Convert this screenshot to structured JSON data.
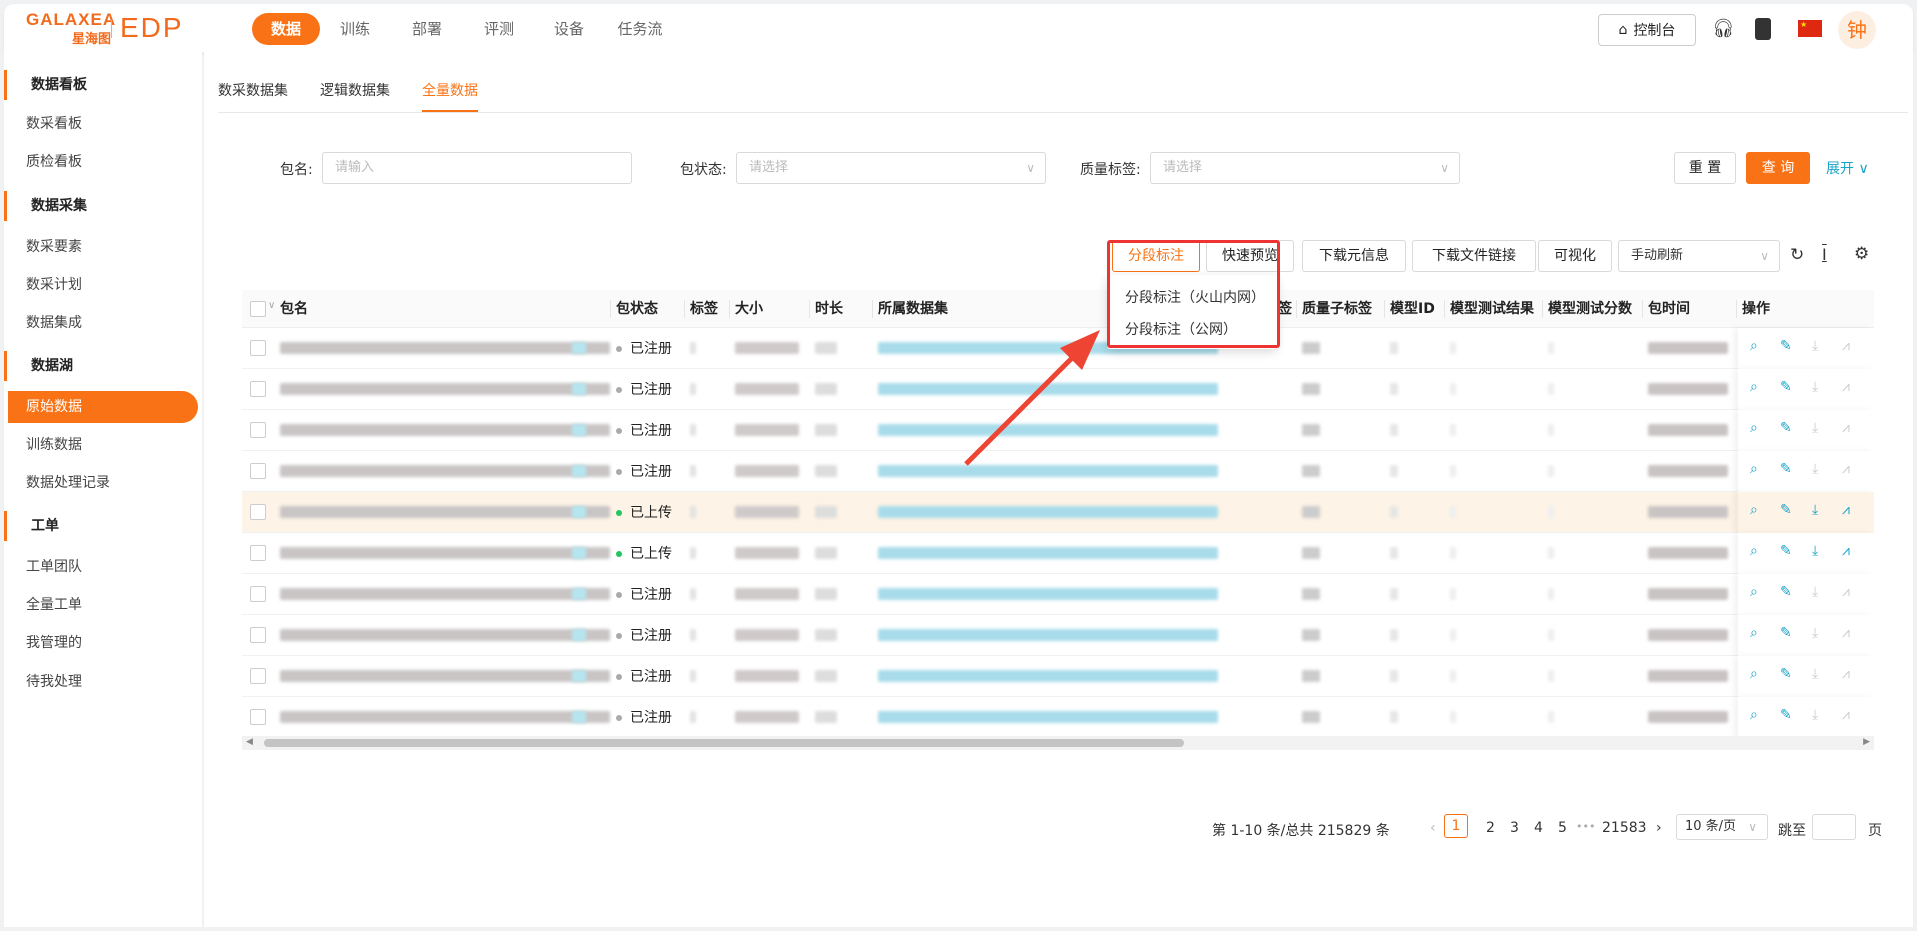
{
  "header": {
    "logo_en": "GALAXEA",
    "logo_cn": "星海图",
    "product": "EDP",
    "nav": [
      {
        "label": "数据",
        "active": true
      },
      {
        "label": "训练"
      },
      {
        "label": "部署"
      },
      {
        "label": "评测"
      },
      {
        "label": "设备"
      },
      {
        "label": "任务流"
      }
    ],
    "console_label": "控制台",
    "avatar_text": "钟",
    "icons": [
      "home-icon",
      "headset-icon",
      "book-icon",
      "china-flag-icon"
    ]
  },
  "sidebar": [
    {
      "type": "group",
      "label": "数据看板"
    },
    {
      "type": "item",
      "label": "数采看板"
    },
    {
      "type": "item",
      "label": "质检看板"
    },
    {
      "type": "group",
      "label": "数据采集"
    },
    {
      "type": "item",
      "label": "数采要素"
    },
    {
      "type": "item",
      "label": "数采计划"
    },
    {
      "type": "item",
      "label": "数据集成"
    },
    {
      "type": "group",
      "label": "数据湖"
    },
    {
      "type": "item",
      "label": "原始数据",
      "active": true
    },
    {
      "type": "item",
      "label": "训练数据"
    },
    {
      "type": "item",
      "label": "数据处理记录"
    },
    {
      "type": "group",
      "label": "工单"
    },
    {
      "type": "item",
      "label": "工单团队"
    },
    {
      "type": "item",
      "label": "全量工单"
    },
    {
      "type": "item",
      "label": "我管理的"
    },
    {
      "type": "item",
      "label": "待我处理"
    }
  ],
  "tabs": [
    "数采数据集",
    "逻辑数据集",
    "全量数据"
  ],
  "filters": {
    "name_label": "包名:",
    "name_placeholder": "请输入",
    "status_label": "包状态:",
    "status_placeholder": "请选择",
    "quality_label": "质量标签:",
    "quality_placeholder": "请选择",
    "reset": "重 置",
    "query": "查 询",
    "expand": "展开"
  },
  "toolbar": {
    "segment": "分段标注",
    "preview": "快速预览",
    "download_meta": "下载元信息",
    "download_links": "下载文件链接",
    "visualize": "可视化",
    "refresh_mode": "手动刷新"
  },
  "dropdown": [
    "分段标注（火山内网）",
    "分段标注（公网）"
  ],
  "columns": [
    "包名",
    "包状态",
    "标签",
    "大小",
    "时长",
    "所属数据集",
    "签",
    "质量子标签",
    "模型ID",
    "模型测试结果",
    "模型测试分数",
    "包时间",
    "操作"
  ],
  "rows": [
    {
      "status": "已注册",
      "color": "#aaaaaa"
    },
    {
      "status": "已注册",
      "color": "#aaaaaa"
    },
    {
      "status": "已注册",
      "color": "#aaaaaa"
    },
    {
      "status": "已注册",
      "color": "#aaaaaa"
    },
    {
      "status": "已上传",
      "color": "#22c55e",
      "highlight": true
    },
    {
      "status": "已上传",
      "color": "#22c55e"
    },
    {
      "status": "已注册",
      "color": "#aaaaaa"
    },
    {
      "status": "已注册",
      "color": "#aaaaaa"
    },
    {
      "status": "已注册",
      "color": "#aaaaaa"
    },
    {
      "status": "已注册",
      "color": "#aaaaaa"
    }
  ],
  "pagination": {
    "summary": "第 1-10 条/总共 215829 条",
    "pages": [
      "1",
      "2",
      "3",
      "4",
      "5"
    ],
    "ellipsis": "•••",
    "last": "21583",
    "page_size": "10 条/页",
    "jump_label": "跳至",
    "page_unit": "页",
    "current": 1
  },
  "colors": {
    "accent": "#f97316",
    "annotation": "#ee3333",
    "link": "#1aa3c8"
  }
}
